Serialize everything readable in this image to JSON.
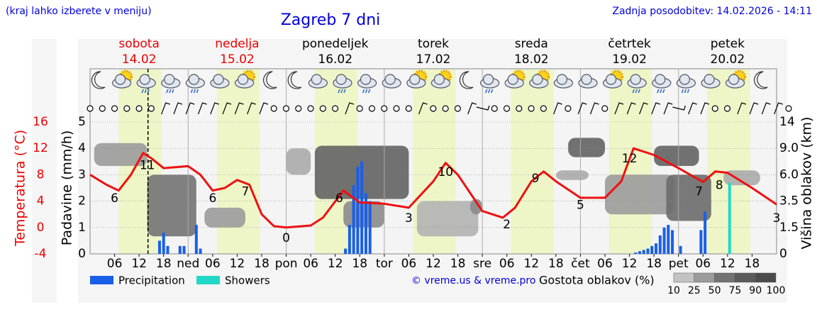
{
  "chart_data": {
    "type": "meteogram",
    "note": "(kraj lahko izberete v meniju)",
    "title": "Zagreb 7 dni",
    "updated": "Zadnja posodobitev: 14.02.2026 - 14:11",
    "days": [
      {
        "name": "sobota",
        "date": "14.02",
        "color": "#ee0000"
      },
      {
        "name": "nedelja",
        "date": "15.02",
        "color": "#ee0000"
      },
      {
        "name": "ponedeljek",
        "date": "16.02",
        "color": "#000000"
      },
      {
        "name": "torek",
        "date": "17.02",
        "color": "#000000"
      },
      {
        "name": "sreda",
        "date": "18.02",
        "color": "#000000"
      },
      {
        "name": "četrtek",
        "date": "19.02",
        "color": "#000000"
      },
      {
        "name": "petek",
        "date": "20.02",
        "color": "#000000"
      }
    ],
    "xlim": [
      0,
      168
    ],
    "xticks": [
      {
        "value": 6,
        "label": "06"
      },
      {
        "value": 12,
        "label": "12"
      },
      {
        "value": 18,
        "label": "18"
      },
      {
        "value": 24,
        "label": "ned"
      },
      {
        "value": 30,
        "label": "06"
      },
      {
        "value": 36,
        "label": "12"
      },
      {
        "value": 42,
        "label": "18"
      },
      {
        "value": 48,
        "label": "pon"
      },
      {
        "value": 54,
        "label": "06"
      },
      {
        "value": 60,
        "label": "12"
      },
      {
        "value": 66,
        "label": "18"
      },
      {
        "value": 72,
        "label": "tor"
      },
      {
        "value": 78,
        "label": "06"
      },
      {
        "value": 84,
        "label": "12"
      },
      {
        "value": 90,
        "label": "18"
      },
      {
        "value": 96,
        "label": "sre"
      },
      {
        "value": 102,
        "label": "06"
      },
      {
        "value": 108,
        "label": "12"
      },
      {
        "value": 114,
        "label": "18"
      },
      {
        "value": 120,
        "label": "čet"
      },
      {
        "value": 126,
        "label": "06"
      },
      {
        "value": 132,
        "label": "12"
      },
      {
        "value": 138,
        "label": "18"
      },
      {
        "value": 144,
        "label": "pet"
      },
      {
        "value": 150,
        "label": "06"
      },
      {
        "value": 156,
        "label": "12"
      },
      {
        "value": 162,
        "label": "18"
      }
    ],
    "daylight": [
      7,
      17.5
    ],
    "now": 14.18,
    "ylabel": "Padavine (mm/h)",
    "ylim": [
      0,
      5
    ],
    "yticks": [
      0,
      1,
      2,
      3,
      4,
      5
    ],
    "tlabel": "Temperatura (°C)",
    "tlim": [
      -4,
      16
    ],
    "tticks": [
      -4,
      0,
      4,
      8,
      12,
      16
    ],
    "y2label": "Višina oblakov (km)",
    "y2lim": [
      0,
      14
    ],
    "y2ticks": [
      0,
      1.5,
      3.5,
      {
        "value": 6,
        "label": "6.0"
      },
      {
        "value": 9,
        "label": "9.0"
      },
      14
    ],
    "temperature": {
      "color": "#ee1111",
      "x": [
        0,
        4,
        7,
        10,
        13,
        15,
        18,
        24,
        27,
        30,
        33,
        36,
        39,
        42,
        45,
        48,
        54,
        57,
        62,
        66,
        72,
        78,
        84,
        87,
        90,
        96,
        101,
        104,
        108,
        111,
        114,
        120,
        126,
        130,
        133,
        138,
        144,
        150,
        153,
        156,
        162,
        168
      ],
      "values": [
        8,
        6.5,
        5.6,
        8,
        11.3,
        10.5,
        9,
        9.3,
        8,
        5.6,
        6,
        7.2,
        6.5,
        2,
        0.2,
        0,
        0.3,
        1.5,
        5.6,
        3.8,
        3.6,
        3,
        7,
        9.8,
        8,
        2.5,
        1.5,
        3,
        7,
        8.5,
        7,
        4.5,
        4.5,
        7,
        12,
        11,
        9,
        6.9,
        8.5,
        8.3,
        6,
        3.5
      ]
    },
    "extremes": {
      "x": [
        6,
        14,
        30,
        38,
        48,
        61,
        78,
        87,
        102,
        109,
        120,
        132,
        149,
        154,
        168
      ],
      "values": [
        6,
        11,
        6,
        7,
        0,
        6,
        3,
        10,
        2,
        9,
        5,
        12,
        7,
        8,
        3
      ]
    },
    "series": [
      {
        "name": "Precipitation",
        "color": "#1a5fe8",
        "x": [
          17,
          18,
          19,
          22,
          23,
          26,
          27,
          62.5,
          63.5,
          64.5,
          65.5,
          66.5,
          67.5,
          68.5,
          133.5,
          134.5,
          135.5,
          136.5,
          137.5,
          138.5,
          139.5,
          140.5,
          141.5,
          142.5,
          144.5,
          149.5,
          150.5
        ],
        "values": [
          0.5,
          0.8,
          0.3,
          0.3,
          0.3,
          1.1,
          0.2,
          0.2,
          1.1,
          2.6,
          3.3,
          3.5,
          2.3,
          2.0,
          0.05,
          0.1,
          0.15,
          0.2,
          0.3,
          0.4,
          0.7,
          1.0,
          1.1,
          0.9,
          0.3,
          0.9,
          1.6
        ]
      },
      {
        "name": "Showers",
        "color": "#22d8c8",
        "x": [
          156.5
        ],
        "values": [
          2.7
        ]
      }
    ],
    "clouds": {
      "label": "Gostota oblakov (%)",
      "ticks": [
        10,
        25,
        50,
        75,
        90,
        100
      ],
      "blobs": [
        {
          "x": [
            1,
            14
          ],
          "y": [
            7,
            10
          ],
          "density": 50
        },
        {
          "x": [
            14,
            26
          ],
          "y": [
            1,
            6
          ],
          "density": 75
        },
        {
          "x": [
            28,
            38
          ],
          "y": [
            1.5,
            3
          ],
          "density": 50
        },
        {
          "x": [
            48,
            54
          ],
          "y": [
            6,
            9
          ],
          "density": 40
        },
        {
          "x": [
            55,
            78
          ],
          "y": [
            3.7,
            9.5
          ],
          "density": 85
        },
        {
          "x": [
            62,
            72
          ],
          "y": [
            1.5,
            3.5
          ],
          "density": 60
        },
        {
          "x": [
            80,
            95
          ],
          "y": [
            1,
            3.5
          ],
          "density": 35
        },
        {
          "x": [
            93,
            96
          ],
          "y": [
            2.5,
            3.7
          ],
          "density": 60
        },
        {
          "x": [
            114,
            122
          ],
          "y": [
            5.5,
            6.5
          ],
          "density": 40
        },
        {
          "x": [
            117,
            126
          ],
          "y": [
            8,
            11
          ],
          "density": 85
        },
        {
          "x": [
            126,
            143
          ],
          "y": [
            2.5,
            6
          ],
          "density": 50
        },
        {
          "x": [
            138,
            149
          ],
          "y": [
            7,
            9.5
          ],
          "density": 85
        },
        {
          "x": [
            141,
            152
          ],
          "y": [
            2,
            6
          ],
          "density": 80
        },
        {
          "x": [
            155,
            164
          ],
          "y": [
            5,
            6.5
          ],
          "density": 40
        }
      ]
    },
    "credit": "© vreme.us & vreme.pro"
  }
}
